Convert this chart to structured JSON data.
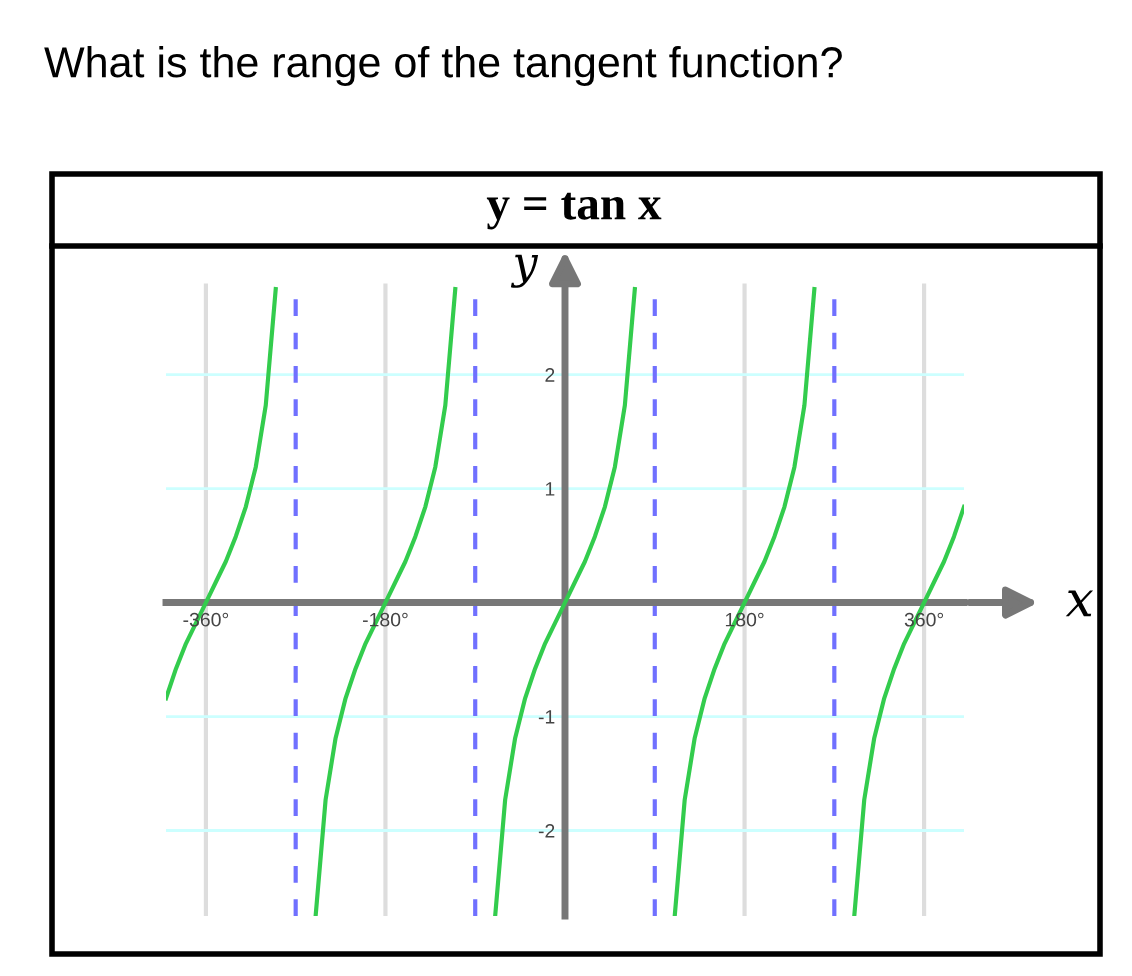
{
  "chart_data": {
    "type": "line",
    "title": "What is the range of the tangent function?",
    "subtitle": "y = tan x",
    "xlabel": "x",
    "ylabel": "y",
    "xlim": [
      -400,
      400
    ],
    "ylim": [
      -2.75,
      2.8
    ],
    "xticks": [
      {
        "value": -360,
        "label": "-360°"
      },
      {
        "value": -180,
        "label": "-180°"
      },
      {
        "value": 180,
        "label": "180°"
      },
      {
        "value": 360,
        "label": "360°"
      }
    ],
    "yticks": [
      {
        "value": -2,
        "label": "-2"
      },
      {
        "value": -1,
        "label": "-1"
      },
      {
        "value": 1,
        "label": "1"
      },
      {
        "value": 2,
        "label": "2"
      }
    ],
    "grid": true,
    "marker": "none",
    "line_style": "solid",
    "series": [
      {
        "color": "#33cc4d",
        "x": [
          -400,
          -390,
          -380,
          -370,
          -360,
          -350,
          -340,
          -330,
          -320,
          -310,
          -300,
          -290
        ],
        "values": [
          -0.84,
          -0.58,
          -0.36,
          -0.18,
          0,
          0.18,
          0.36,
          0.58,
          0.84,
          1.19,
          1.73,
          2.75
        ]
      },
      {
        "color": "#33cc4d",
        "x": [
          -250,
          -240,
          -230,
          -220,
          -210,
          -200,
          -190,
          -180,
          -170,
          -160,
          -150,
          -140,
          -130,
          -120,
          -110
        ],
        "values": [
          -2.75,
          -1.73,
          -1.19,
          -0.84,
          -0.58,
          -0.36,
          -0.18,
          0,
          0.18,
          0.36,
          0.58,
          0.84,
          1.19,
          1.73,
          2.75
        ]
      },
      {
        "color": "#33cc4d",
        "x": [
          -70,
          -60,
          -50,
          -40,
          -30,
          -20,
          -10,
          0,
          10,
          20,
          30,
          40,
          50,
          60,
          70
        ],
        "values": [
          -2.75,
          -1.73,
          -1.19,
          -0.84,
          -0.58,
          -0.36,
          -0.18,
          0,
          0.18,
          0.36,
          0.58,
          0.84,
          1.19,
          1.73,
          2.75
        ]
      },
      {
        "color": "#33cc4d",
        "x": [
          110,
          120,
          130,
          140,
          150,
          160,
          170,
          180,
          190,
          200,
          210,
          220,
          230,
          240,
          250
        ],
        "values": [
          -2.75,
          -1.73,
          -1.19,
          -0.84,
          -0.58,
          -0.36,
          -0.18,
          0,
          0.18,
          0.36,
          0.58,
          0.84,
          1.19,
          1.73,
          2.75
        ]
      },
      {
        "color": "#33cc4d",
        "x": [
          290,
          300,
          310,
          320,
          330,
          340,
          350,
          360,
          370,
          380,
          390,
          400
        ],
        "values": [
          -2.75,
          -1.73,
          -1.19,
          -0.84,
          -0.58,
          -0.36,
          -0.18,
          0,
          0.18,
          0.36,
          0.58,
          0.84
        ]
      }
    ],
    "ref_lines": [
      {
        "axis": "x",
        "value": -270,
        "color": "#7070ff",
        "line_style": "dashed"
      },
      {
        "axis": "x",
        "value": -90,
        "color": "#7070ff",
        "line_style": "dashed"
      },
      {
        "axis": "x",
        "value": 90,
        "color": "#7070ff",
        "line_style": "dashed"
      },
      {
        "axis": "x",
        "value": 270,
        "color": "#7070ff",
        "line_style": "dashed"
      }
    ]
  }
}
